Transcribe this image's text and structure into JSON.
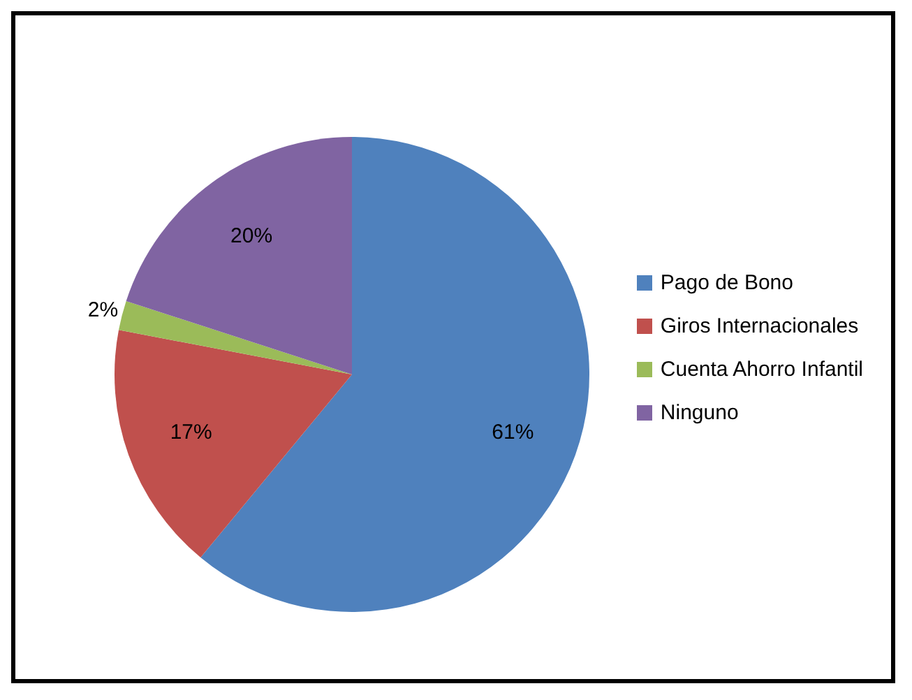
{
  "chart_data": {
    "type": "pie",
    "categories": [
      "Pago de Bono",
      "Giros Internacionales",
      "Cuenta Ahorro Infantil",
      "Ninguno"
    ],
    "values": [
      61,
      17,
      2,
      20
    ],
    "colors": [
      "#4f81bd",
      "#c0504d",
      "#9bbb59",
      "#8064a2"
    ],
    "value_labels": [
      "61%",
      "17%",
      "2%",
      "20%"
    ],
    "legend": "right"
  }
}
